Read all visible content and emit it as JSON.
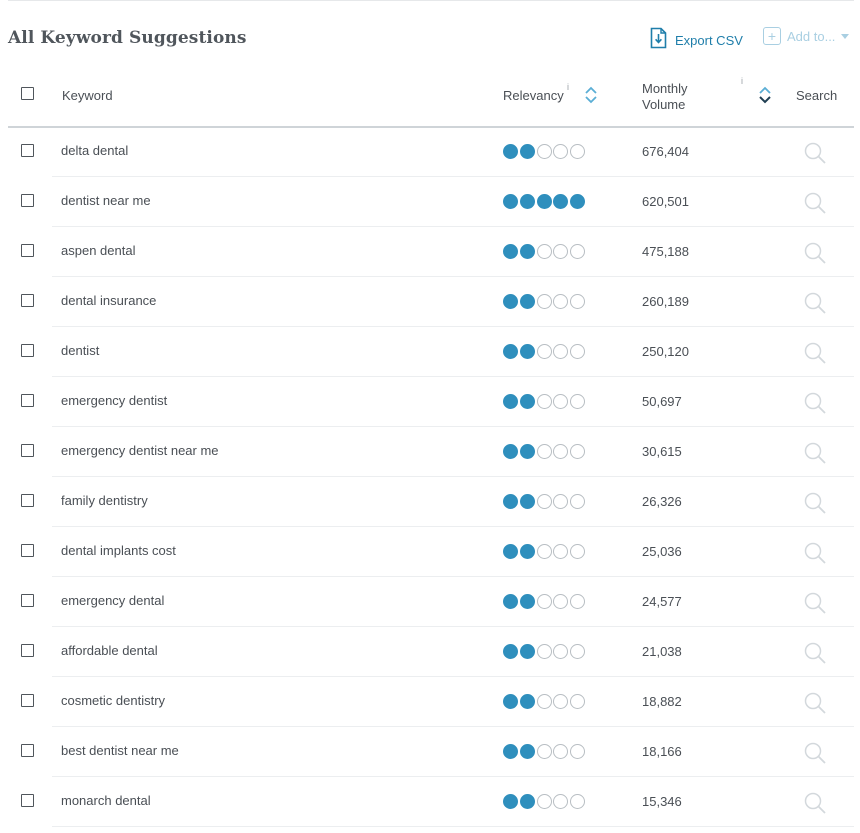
{
  "header": {
    "title": "All Keyword Suggestions",
    "export_label": "Export CSV",
    "add_to_label": "Add to..."
  },
  "columns": {
    "keyword": "Keyword",
    "relevancy": "Relevancy",
    "monthly_volume_line1": "Monthly",
    "monthly_volume_line2": "Volume",
    "search": "Search",
    "info_glyph": "i"
  },
  "colors": {
    "accent": "#2f8fbd",
    "link": "#1f7eaa",
    "disabled": "#a9cfe2",
    "text": "#4a4f55"
  },
  "icons": {
    "export": "export-icon",
    "add": "plus-box-icon",
    "sort": "sort-chevrons-icon",
    "search": "magnifier-icon"
  },
  "rows": [
    {
      "keyword": "delta dental",
      "relevancy": 2,
      "volume": "676,404"
    },
    {
      "keyword": "dentist near me",
      "relevancy": 5,
      "volume": "620,501"
    },
    {
      "keyword": "aspen dental",
      "relevancy": 2,
      "volume": "475,188"
    },
    {
      "keyword": "dental insurance",
      "relevancy": 2,
      "volume": "260,189"
    },
    {
      "keyword": "dentist",
      "relevancy": 2,
      "volume": "250,120"
    },
    {
      "keyword": "emergency dentist",
      "relevancy": 2,
      "volume": "50,697"
    },
    {
      "keyword": "emergency dentist near me",
      "relevancy": 2,
      "volume": "30,615"
    },
    {
      "keyword": "family dentistry",
      "relevancy": 2,
      "volume": "26,326"
    },
    {
      "keyword": "dental implants cost",
      "relevancy": 2,
      "volume": "25,036"
    },
    {
      "keyword": "emergency dental",
      "relevancy": 2,
      "volume": "24,577"
    },
    {
      "keyword": "affordable dental",
      "relevancy": 2,
      "volume": "21,038"
    },
    {
      "keyword": "cosmetic dentistry",
      "relevancy": 2,
      "volume": "18,882"
    },
    {
      "keyword": "best dentist near me",
      "relevancy": 2,
      "volume": "18,166"
    },
    {
      "keyword": "monarch dental",
      "relevancy": 2,
      "volume": "15,346"
    }
  ]
}
